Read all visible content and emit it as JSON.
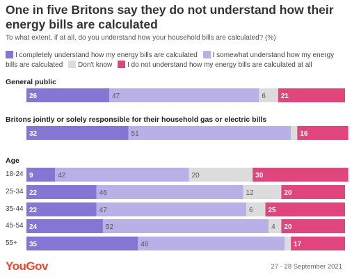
{
  "title": "One in five Britons say they do not understand how their energy bills are calculated",
  "subtitle": "To what extent, if at all, do you understand how your household bills are calculated? (%)",
  "legend": [
    {
      "label": "I completely understand how my energy bills are calculated",
      "color": "#8676d4"
    },
    {
      "label": "I somewhat understand how my energy bills are calculated",
      "color": "#b9b0e8"
    },
    {
      "label": "Don't know",
      "color": "#dcdcdc"
    },
    {
      "label": "I do not understand how my energy bills are calculated at all",
      "color": "#e0457b"
    }
  ],
  "sections": {
    "general": "General public",
    "responsible": "Britons jointly or solely responsible for their household gas or electric bills",
    "age": "Age"
  },
  "chart_data": {
    "type": "bar",
    "orientation": "horizontal",
    "stacked": true,
    "xlim": [
      0,
      100
    ],
    "categories": [
      "General public",
      "Britons jointly or solely responsible for their household gas or electric bills",
      "18-24",
      "25-34",
      "35-44",
      "45-54",
      "55+"
    ],
    "row_labels": [
      "",
      "",
      "18-24",
      "25-34",
      "35-44",
      "45-54",
      "55+"
    ],
    "series": [
      {
        "name": "I completely understand how my energy bills are calculated",
        "color": "#8676d4",
        "values": [
          26,
          32,
          9,
          22,
          22,
          24,
          35
        ]
      },
      {
        "name": "I somewhat understand how my energy bills are calculated",
        "color": "#b9b0e8",
        "values": [
          47,
          51,
          42,
          46,
          47,
          52,
          46
        ]
      },
      {
        "name": "Don't know",
        "color": "#dcdcdc",
        "values": [
          6,
          2,
          20,
          12,
          6,
          4,
          2
        ]
      },
      {
        "name": "I do not understand how my energy bills are calculated at all",
        "color": "#e0457b",
        "values": [
          21,
          16,
          30,
          20,
          25,
          20,
          17
        ]
      }
    ],
    "labels": [
      [
        "26",
        "47",
        "6",
        "21"
      ],
      [
        "32",
        "51",
        "",
        "16"
      ],
      [
        "9",
        "42",
        "20",
        "30"
      ],
      [
        "22",
        "46",
        "12",
        "20"
      ],
      [
        "22",
        "47",
        "6",
        "25"
      ],
      [
        "24",
        "52",
        "4",
        "20"
      ],
      [
        "35",
        "46",
        "",
        "17"
      ]
    ]
  },
  "footer": {
    "brand": "YouGov",
    "date": "27 - 28 September 2021"
  }
}
